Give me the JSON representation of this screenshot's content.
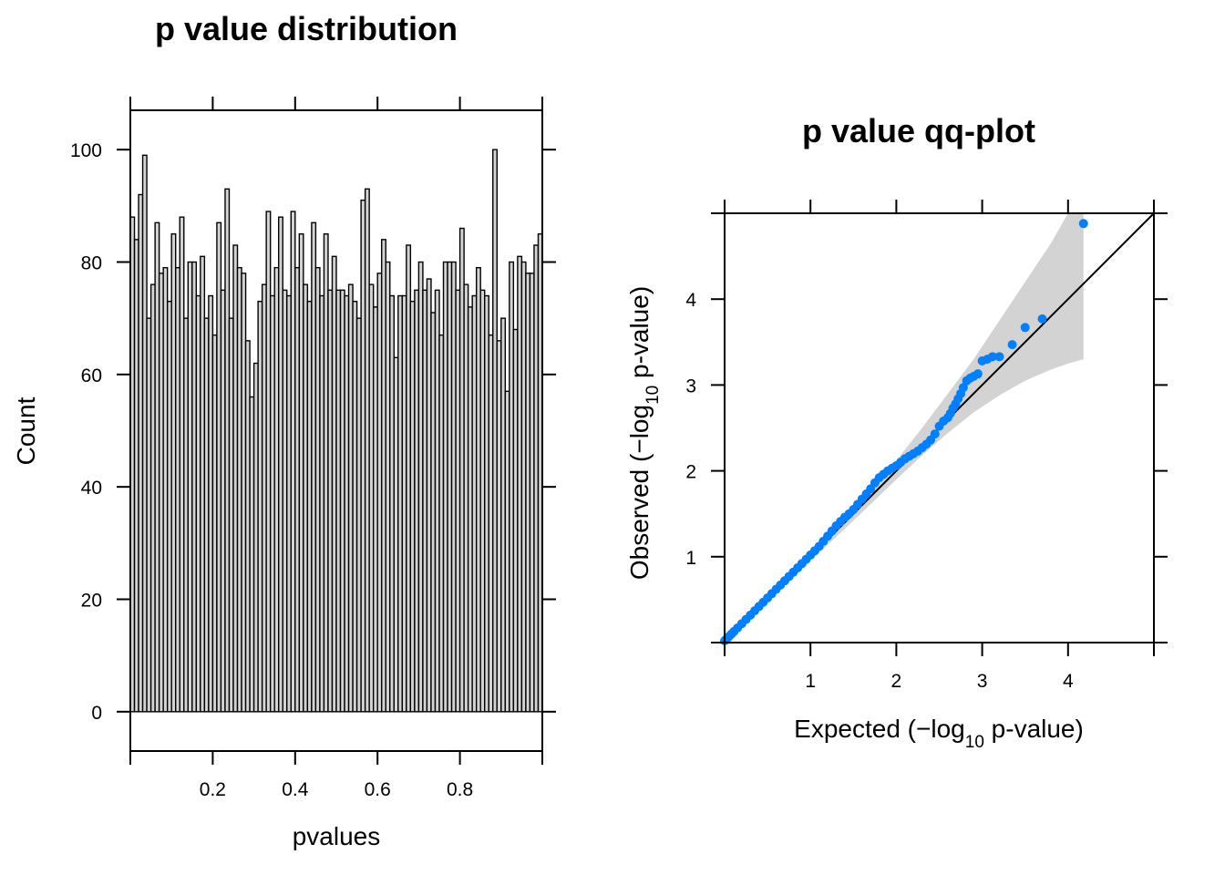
{
  "chart_data": [
    {
      "type": "bar",
      "title": "p value distribution",
      "xlabel": "pvalues",
      "ylabel": "Count",
      "xlim": [
        0,
        1
      ],
      "ylim": [
        -7,
        107
      ],
      "x_ticks": [
        0.2,
        0.4,
        0.6,
        0.8
      ],
      "x_tick_labels": [
        "0.2",
        "0.4",
        "0.6",
        "0.8"
      ],
      "y_ticks": [
        0,
        20,
        40,
        60,
        80,
        100
      ],
      "y_tick_labels": [
        "0",
        "20",
        "40",
        "60",
        "80",
        "100"
      ],
      "bin_width": 0.01,
      "bar_fill": "#d3d3d3",
      "bar_stroke": "#000000",
      "values": [
        88,
        84,
        92,
        99,
        70,
        76,
        87,
        78,
        79,
        73,
        85,
        79,
        88,
        70,
        80,
        80,
        74,
        81,
        70,
        74,
        67,
        87,
        75,
        93,
        70,
        83,
        79,
        78,
        66,
        56,
        62,
        73,
        76,
        89,
        74,
        79,
        88,
        75,
        74,
        89,
        79,
        85,
        76,
        73,
        87,
        79,
        74,
        85,
        75,
        81,
        75,
        75,
        74,
        76,
        73,
        70,
        91,
        93,
        76,
        72,
        78,
        84,
        80,
        74,
        63,
        74,
        74,
        83,
        73,
        75,
        80,
        75,
        77,
        71,
        75,
        67,
        80,
        80,
        80,
        75,
        86,
        76,
        72,
        74,
        79,
        75,
        74,
        67,
        100,
        66,
        70,
        57,
        80,
        68,
        81,
        80,
        78,
        78,
        83,
        85,
        71
      ]
    },
    {
      "type": "scatter",
      "title": "p value qq-plot",
      "xlabel_parts": [
        "Expected (",
        "−",
        "log",
        "10",
        " p-value)"
      ],
      "ylabel_parts": [
        "Observed (",
        "−",
        "log",
        "10",
        " p-value)"
      ],
      "xlim": [
        0,
        5
      ],
      "ylim": [
        0,
        5
      ],
      "x_ticks": [
        1,
        2,
        3,
        4
      ],
      "x_tick_labels": [
        "1",
        "2",
        "3",
        "4"
      ],
      "y_ticks": [
        1,
        2,
        3,
        4
      ],
      "y_tick_labels": [
        "1",
        "2",
        "3",
        "4"
      ],
      "reference_line": {
        "from": [
          0,
          0
        ],
        "to": [
          5,
          5
        ]
      },
      "point_color": "#0080ff",
      "band_color": "#d3d3d3",
      "envelope": {
        "x": [
          0.0,
          0.5,
          1.0,
          1.5,
          2.0,
          2.3,
          2.6,
          2.9,
          3.2,
          3.5,
          3.8,
          4.0,
          4.18
        ],
        "upper": [
          0.0,
          0.53,
          1.05,
          1.58,
          2.12,
          2.5,
          2.9,
          3.3,
          3.75,
          4.2,
          4.65,
          5.0,
          5.05
        ],
        "lower": [
          0.0,
          0.47,
          0.95,
          1.42,
          1.9,
          2.18,
          2.44,
          2.68,
          2.88,
          3.05,
          3.18,
          3.25,
          3.3
        ]
      },
      "points": {
        "x": [
          0.0,
          0.01,
          0.03,
          0.05,
          0.08,
          0.11,
          0.15,
          0.2,
          0.25,
          0.3,
          0.35,
          0.4,
          0.45,
          0.5,
          0.55,
          0.6,
          0.65,
          0.7,
          0.75,
          0.8,
          0.85,
          0.9,
          0.95,
          1.0,
          1.05,
          1.1,
          1.15,
          1.2,
          1.25,
          1.3,
          1.35,
          1.4,
          1.45,
          1.5,
          1.55,
          1.6,
          1.65,
          1.7,
          1.75,
          1.8,
          1.85,
          1.9,
          1.95,
          2.0,
          2.05,
          2.1,
          2.15,
          2.2,
          2.25,
          2.3,
          2.35,
          2.4,
          2.45,
          2.5,
          2.55,
          2.6,
          2.63,
          2.66,
          2.69,
          2.72,
          2.75,
          2.78,
          2.82,
          2.86,
          2.9,
          2.95,
          3.0,
          3.06,
          3.12,
          3.2,
          3.35,
          3.5,
          3.7,
          4.18
        ],
        "y": [
          0.02,
          0.03,
          0.05,
          0.07,
          0.1,
          0.13,
          0.17,
          0.22,
          0.27,
          0.32,
          0.37,
          0.42,
          0.47,
          0.52,
          0.57,
          0.62,
          0.67,
          0.72,
          0.77,
          0.82,
          0.87,
          0.92,
          0.97,
          1.02,
          1.07,
          1.12,
          1.18,
          1.24,
          1.3,
          1.36,
          1.41,
          1.46,
          1.5,
          1.55,
          1.61,
          1.67,
          1.73,
          1.79,
          1.86,
          1.92,
          1.96,
          2.0,
          2.03,
          2.06,
          2.1,
          2.14,
          2.17,
          2.2,
          2.23,
          2.27,
          2.31,
          2.36,
          2.43,
          2.52,
          2.58,
          2.62,
          2.67,
          2.73,
          2.78,
          2.84,
          2.9,
          2.97,
          3.05,
          3.08,
          3.1,
          3.13,
          3.28,
          3.3,
          3.33,
          3.33,
          3.47,
          3.67,
          3.77,
          4.88
        ]
      }
    }
  ]
}
